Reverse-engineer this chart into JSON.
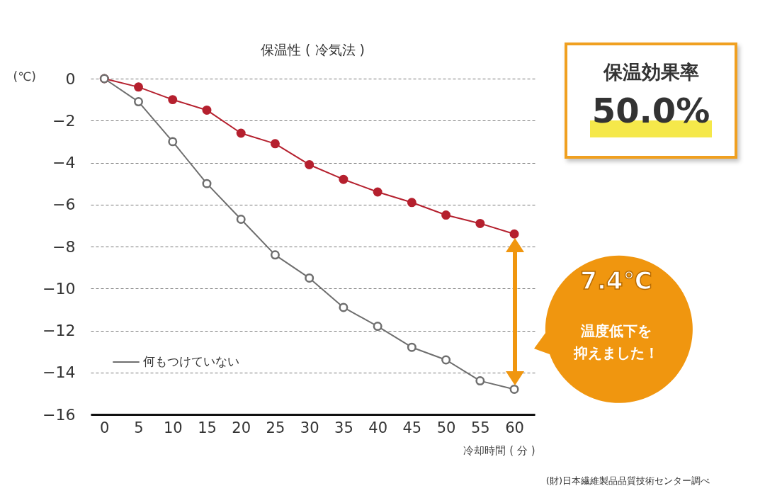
{
  "chart_data": {
    "type": "line",
    "title": "保温性 ( 冷気法 )",
    "xlabel": "冷却時間 ( 分 )",
    "ylabel": "(℃)",
    "x": [
      0,
      5,
      10,
      15,
      20,
      25,
      30,
      35,
      40,
      45,
      50,
      55,
      60
    ],
    "series": [
      {
        "color": "#b5202e",
        "values": [
          0,
          -0.4,
          -1.0,
          -1.5,
          -2.6,
          -3.1,
          -4.1,
          -4.8,
          -5.4,
          -5.9,
          -6.5,
          -6.9,
          -7.4
        ]
      },
      {
        "name": "何もつけていない",
        "color": "#6e6e6e",
        "values": [
          0,
          -1.1,
          -3.0,
          -5.0,
          -6.7,
          -8.4,
          -9.5,
          -10.9,
          -11.8,
          -12.8,
          -13.4,
          -14.4,
          -14.8
        ]
      }
    ],
    "xlim": [
      -2,
      63
    ],
    "xticks": [
      0,
      5,
      10,
      15,
      20,
      25,
      30,
      35,
      40,
      45,
      50,
      55,
      60
    ],
    "ylim": [
      -16,
      0
    ],
    "yticks": [
      0,
      -2,
      -4,
      -6,
      -8,
      -10,
      -12,
      -14,
      -16
    ],
    "grid": "y",
    "legend": "bottom left",
    "marker": "circle",
    "annotations": [
      "保温効果率",
      "50.0%",
      "7.4℃",
      "温度低下を",
      "抑えました！",
      "(財)日本繊維製品品質技術センター調べ"
    ]
  }
}
